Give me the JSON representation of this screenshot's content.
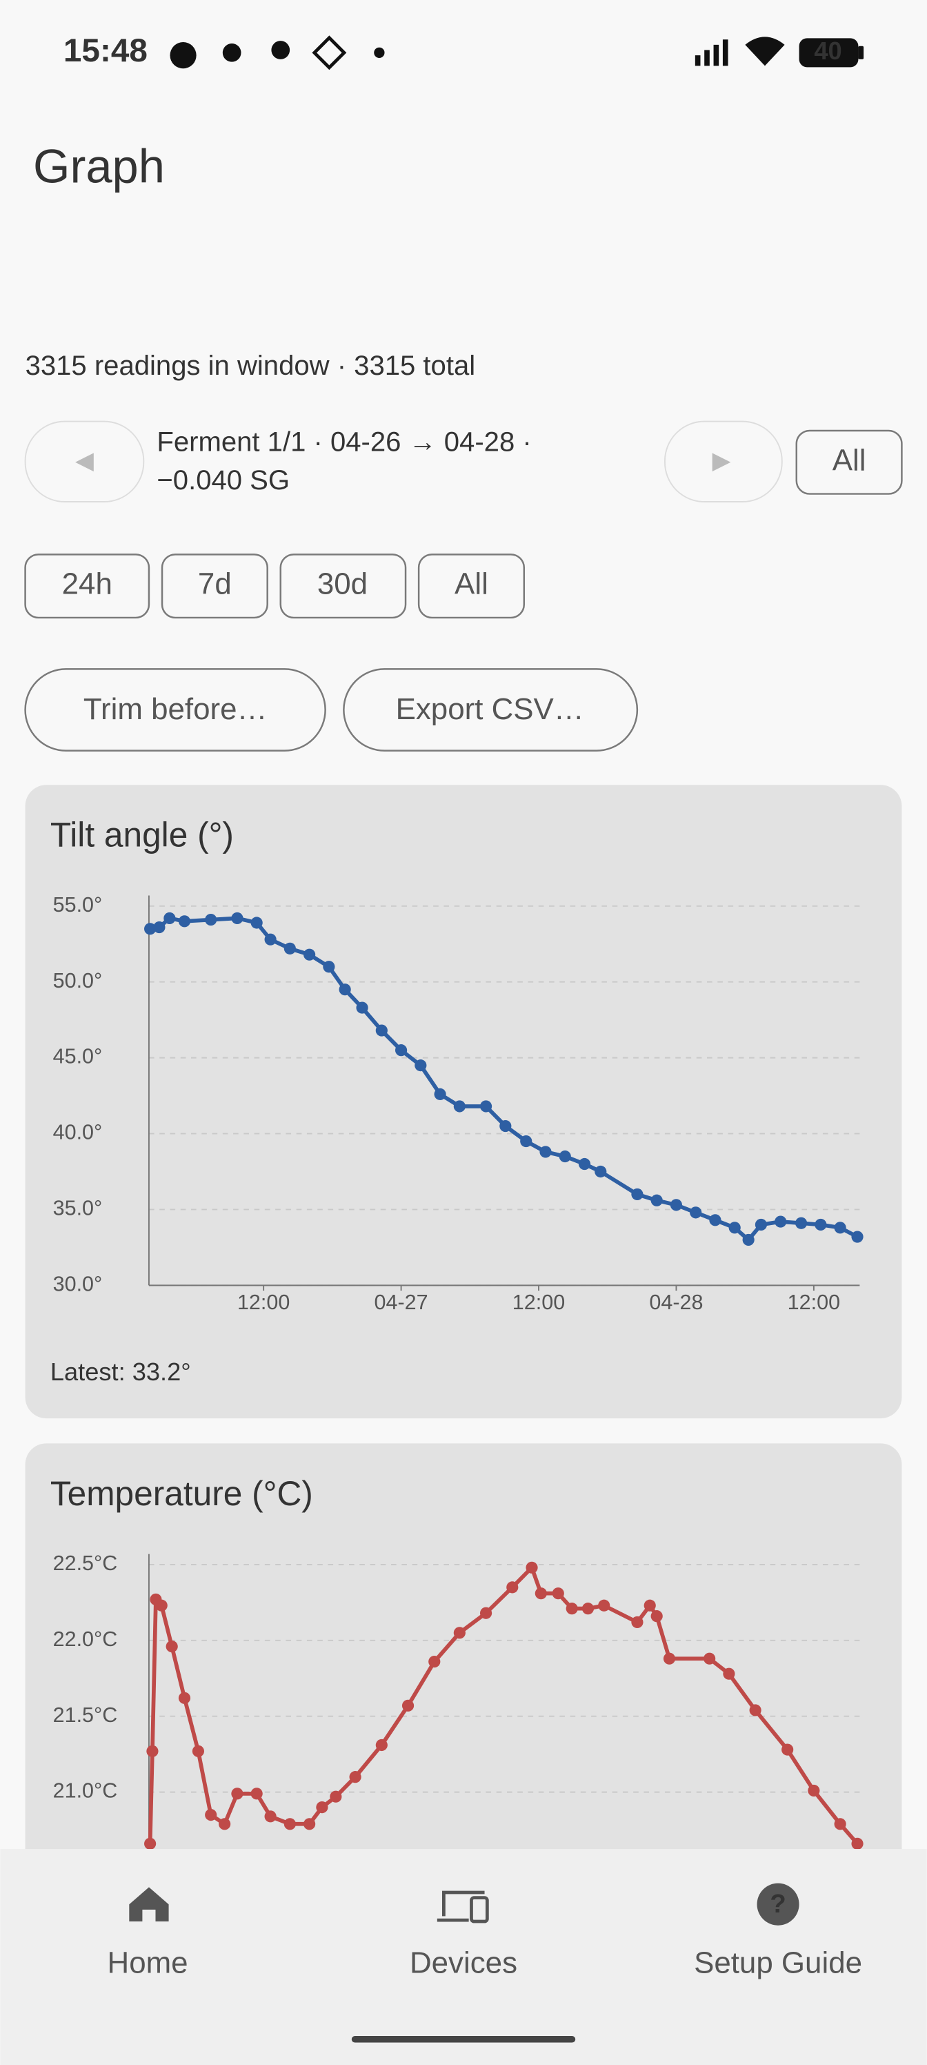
{
  "status_bar": {
    "time": "15:48",
    "battery": "40"
  },
  "header": {
    "title": "Graph"
  },
  "summary": "3315 readings in window · 3315 total",
  "session": {
    "lines": [
      "Ferment 1/1 · 04-26 → 04-28 ·",
      "−0.040 SG"
    ],
    "all_button": "All"
  },
  "range_buttons": [
    "24h",
    "7d",
    "30d",
    "All"
  ],
  "actions": [
    "Trim before…",
    "Export CSV…"
  ],
  "chart_data": [
    {
      "type": "line",
      "title": "Tilt angle (°)",
      "color": "#2e5fa3",
      "grid": true,
      "x": [
        2.1,
        2.9,
        3.8,
        5.1,
        7.4,
        9.7,
        11.4,
        12.6,
        14.3,
        16.0,
        17.7,
        19.1,
        20.6,
        22.3,
        24.0,
        25.7,
        27.4,
        29.1,
        31.4,
        33.1,
        34.9,
        36.6,
        38.3,
        40.0,
        41.4,
        44.6,
        46.3,
        48.0,
        49.7,
        51.4,
        53.1,
        54.3,
        55.4,
        57.1,
        58.9,
        60.6,
        62.3,
        63.8
      ],
      "values": [
        53.5,
        53.6,
        54.2,
        54.0,
        54.1,
        54.2,
        53.9,
        52.8,
        52.2,
        51.8,
        51.0,
        49.5,
        48.3,
        46.8,
        45.5,
        44.5,
        42.6,
        41.8,
        41.8,
        40.5,
        39.5,
        38.8,
        38.5,
        38.0,
        37.5,
        36.0,
        35.6,
        35.3,
        34.8,
        34.3,
        33.8,
        33.0,
        34.0,
        34.2,
        34.1,
        34.0,
        33.8,
        33.2
      ],
      "xlim": [
        2,
        64
      ],
      "xticks": [
        {
          "value": 12,
          "label": "12:00"
        },
        {
          "value": 24,
          "label": "04-27"
        },
        {
          "value": 36,
          "label": "12:00"
        },
        {
          "value": 48,
          "label": "04-28"
        },
        {
          "value": 60,
          "label": "12:00"
        }
      ],
      "ylim": [
        30,
        55
      ],
      "yticks": [
        {
          "value": 30,
          "label": "30.0°"
        },
        {
          "value": 35,
          "label": "35.0°"
        },
        {
          "value": 40,
          "label": "40.0°"
        },
        {
          "value": 45,
          "label": "45.0°"
        },
        {
          "value": 50,
          "label": "50.0°"
        },
        {
          "value": 55,
          "label": "55.0°"
        }
      ],
      "latest": "Latest: 33.2°"
    },
    {
      "type": "line",
      "title": "Temperature (°C)",
      "color": "#bf4a48",
      "grid": true,
      "x": [
        2.1,
        2.3,
        2.6,
        3.1,
        4.0,
        5.1,
        6.3,
        7.4,
        8.6,
        9.7,
        11.4,
        12.6,
        14.3,
        16.0,
        17.1,
        18.3,
        20.0,
        22.3,
        24.6,
        26.9,
        29.1,
        31.4,
        33.7,
        35.4,
        36.2,
        37.7,
        38.9,
        40.3,
        41.7,
        44.6,
        45.7,
        46.3,
        47.4,
        50.9,
        52.6,
        54.9,
        57.7,
        60.0,
        62.3,
        63.8
      ],
      "values": [
        20.66,
        21.27,
        22.27,
        22.23,
        21.96,
        21.62,
        21.27,
        20.85,
        20.79,
        20.99,
        20.99,
        20.84,
        20.79,
        20.79,
        20.9,
        20.97,
        21.1,
        21.31,
        21.57,
        21.86,
        22.05,
        22.18,
        22.35,
        22.48,
        22.31,
        22.31,
        22.21,
        22.21,
        22.23,
        22.12,
        22.23,
        22.16,
        21.88,
        21.88,
        21.78,
        21.54,
        21.28,
        21.01,
        20.79,
        20.66
      ],
      "xlim": [
        2,
        64
      ],
      "ylim": [
        20,
        22.5
      ],
      "yticks": [
        {
          "value": 21,
          "label": "21.0°C"
        },
        {
          "value": 21.5,
          "label": "21.5°C"
        },
        {
          "value": 22,
          "label": "22.0°C"
        },
        {
          "value": 22.5,
          "label": "22.5°C"
        }
      ]
    }
  ],
  "nav": [
    {
      "label": "Home"
    },
    {
      "label": "Devices"
    },
    {
      "label": "Setup Guide"
    }
  ]
}
